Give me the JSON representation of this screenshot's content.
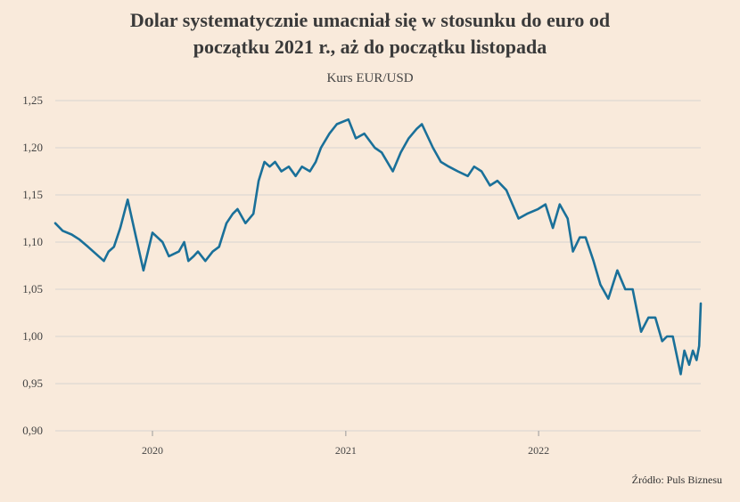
{
  "title": "Dolar systematycznie umacniał się w stosunku do euro od początku 2021 r., aż do początku listopada",
  "title_line1": "Dolar systematycznie umacniał się w stosunku do euro od",
  "title_line2": "początku 2021 r., aż do początku listopada",
  "source": "Źródło: Puls Biznesu",
  "colors": {
    "background": "#f9eadb",
    "line": "#1a7099",
    "grid": "#d8d4d2"
  },
  "chart_data": {
    "type": "line",
    "title": "Dolar systematycznie umacniał się w stosunku do euro od początku 2021 r., aż do początku listopada",
    "subtitle": "Kurs EUR/USD",
    "xlabel": "",
    "ylabel": "",
    "ylim": [
      0.9,
      1.25
    ],
    "xlim": [
      "2019-07-01",
      "2022-11-04"
    ],
    "yticks": [
      "1,25",
      "1,20",
      "1,15",
      "1,10",
      "1,05",
      "1,00",
      "0,95",
      "0,90"
    ],
    "ytick_values": [
      1.25,
      1.2,
      1.15,
      1.1,
      1.05,
      1.0,
      0.95,
      0.9
    ],
    "xticks": [
      "2020",
      "2021",
      "2022"
    ],
    "xtick_values": [
      "2020-01-01",
      "2021-01-01",
      "2022-01-01"
    ],
    "grid": "horizontal",
    "legend": "none",
    "series": [
      {
        "x": [
          "2019-07-01",
          "2019-07-15",
          "2019-08-01",
          "2019-08-15",
          "2019-09-01",
          "2019-09-15",
          "2019-10-01",
          "2019-10-10",
          "2019-10-20",
          "2019-11-01",
          "2019-11-15",
          "2019-12-01",
          "2019-12-15",
          "2020-01-01",
          "2020-01-20",
          "2020-02-01",
          "2020-02-20",
          "2020-03-01",
          "2020-03-09",
          "2020-03-19",
          "2020-03-27",
          "2020-04-10",
          "2020-04-24",
          "2020-05-06",
          "2020-05-20",
          "2020-06-01",
          "2020-06-10",
          "2020-06-25",
          "2020-07-10",
          "2020-07-20",
          "2020-07-31",
          "2020-08-10",
          "2020-08-20",
          "2020-09-01",
          "2020-09-15",
          "2020-09-28",
          "2020-10-10",
          "2020-10-25",
          "2020-11-05",
          "2020-11-15",
          "2020-12-01",
          "2020-12-15",
          "2021-01-06",
          "2021-01-20",
          "2021-02-05",
          "2021-02-25",
          "2021-03-10",
          "2021-03-31",
          "2021-04-15",
          "2021-04-30",
          "2021-05-15",
          "2021-05-25",
          "2021-06-15",
          "2021-06-30",
          "2021-07-15",
          "2021-08-01",
          "2021-08-20",
          "2021-09-01",
          "2021-09-15",
          "2021-10-01",
          "2021-10-15",
          "2021-11-01",
          "2021-11-24",
          "2021-12-10",
          "2021-12-31",
          "2022-01-14",
          "2022-01-28",
          "2022-02-10",
          "2022-02-25",
          "2022-03-07",
          "2022-03-20",
          "2022-03-31",
          "2022-04-15",
          "2022-04-28",
          "2022-05-13",
          "2022-05-30",
          "2022-06-14",
          "2022-06-28",
          "2022-07-14",
          "2022-07-28",
          "2022-08-10",
          "2022-08-23",
          "2022-09-01",
          "2022-09-12",
          "2022-09-27",
          "2022-10-04",
          "2022-10-13",
          "2022-10-20",
          "2022-10-27",
          "2022-11-01",
          "2022-11-04"
        ],
        "y": [
          1.12,
          1.112,
          1.108,
          1.103,
          1.095,
          1.088,
          1.08,
          1.09,
          1.095,
          1.115,
          1.145,
          1.105,
          1.07,
          1.11,
          1.1,
          1.085,
          1.09,
          1.1,
          1.08,
          1.085,
          1.09,
          1.08,
          1.09,
          1.095,
          1.12,
          1.13,
          1.135,
          1.12,
          1.13,
          1.165,
          1.185,
          1.18,
          1.185,
          1.175,
          1.18,
          1.17,
          1.18,
          1.175,
          1.185,
          1.2,
          1.215,
          1.225,
          1.23,
          1.21,
          1.215,
          1.2,
          1.195,
          1.175,
          1.195,
          1.21,
          1.22,
          1.225,
          1.2,
          1.185,
          1.18,
          1.175,
          1.17,
          1.18,
          1.175,
          1.16,
          1.165,
          1.155,
          1.125,
          1.13,
          1.135,
          1.14,
          1.115,
          1.14,
          1.125,
          1.09,
          1.105,
          1.105,
          1.08,
          1.055,
          1.04,
          1.07,
          1.05,
          1.05,
          1.005,
          1.02,
          1.02,
          0.995,
          1.0,
          1.0,
          0.96,
          0.985,
          0.97,
          0.985,
          0.975,
          0.99,
          1.035
        ],
        "color": "#1a7099"
      }
    ]
  }
}
